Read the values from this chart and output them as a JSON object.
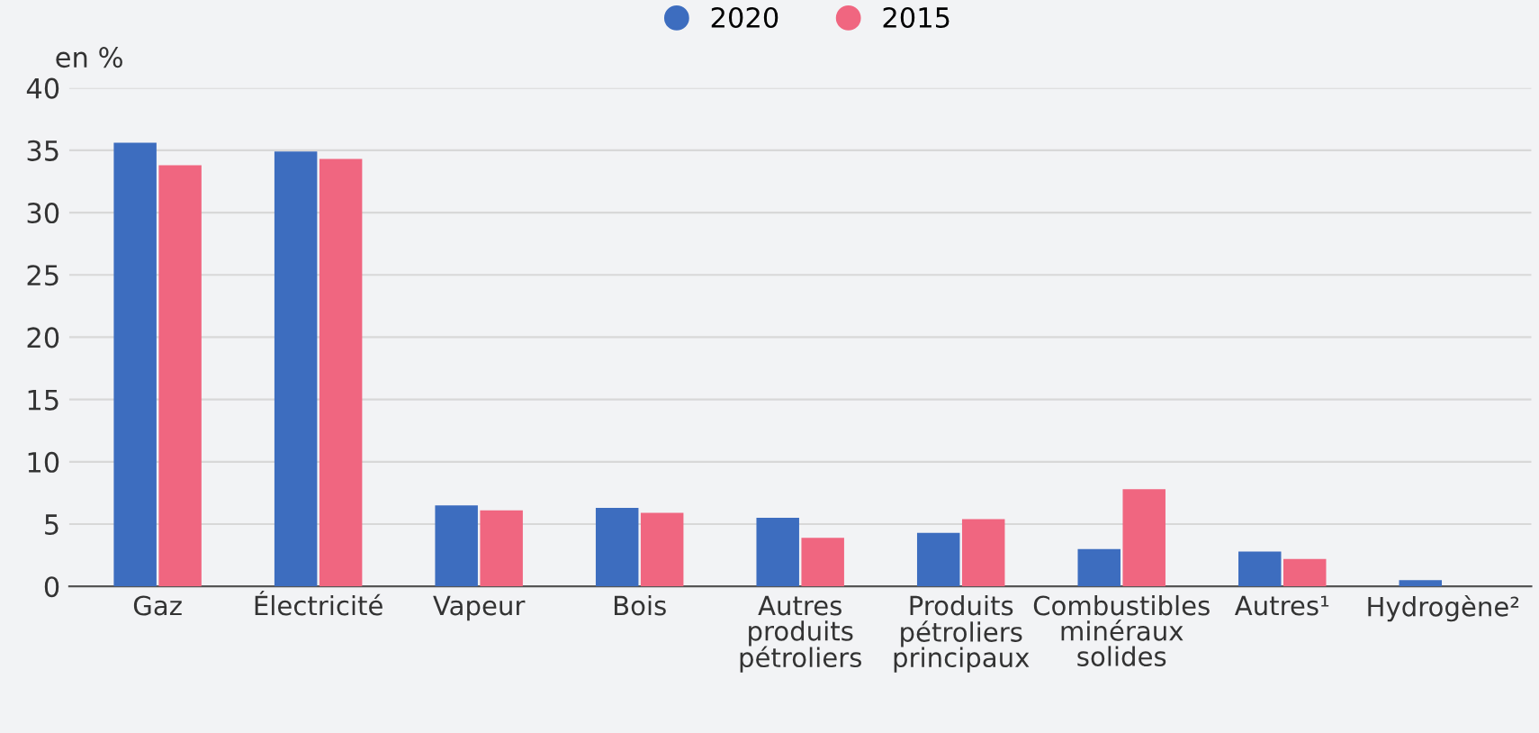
{
  "chart_data": {
    "type": "bar",
    "ylabel": "en %",
    "categories": [
      "Gaz",
      "Électricité",
      "Vapeur",
      "Bois",
      "Autres produits pétroliers",
      "Produits pétroliers principaux",
      "Combustibles minéraux solides",
      "Autres¹",
      "Hydrogène²"
    ],
    "series": [
      {
        "name": "2020",
        "color": "#3d6dbf",
        "values": [
          35.6,
          34.9,
          6.5,
          6.3,
          5.5,
          4.3,
          3.0,
          2.8,
          0.5
        ]
      },
      {
        "name": "2015",
        "color": "#f06680",
        "values": [
          33.8,
          34.3,
          6.1,
          5.9,
          3.9,
          5.4,
          7.8,
          2.2,
          null
        ]
      }
    ],
    "ylim": [
      0,
      40
    ],
    "yticks": [
      0,
      5,
      10,
      15,
      20,
      25,
      30,
      35,
      40
    ],
    "grid": "y",
    "legend": "top"
  }
}
